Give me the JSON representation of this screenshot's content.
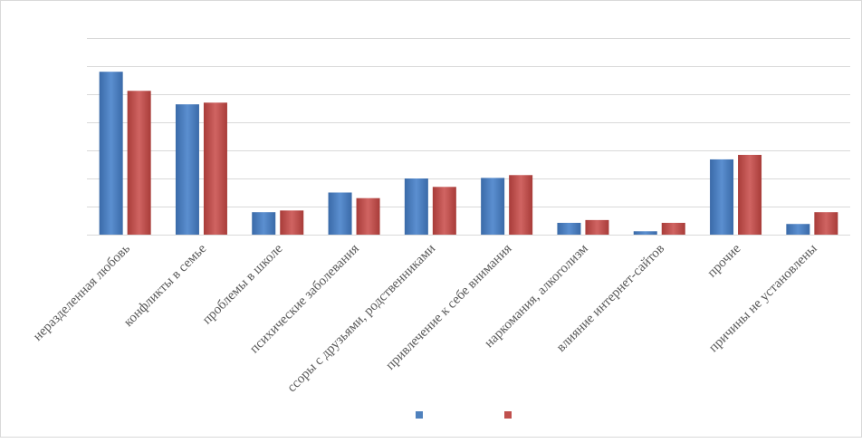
{
  "chart_data": {
    "type": "bar",
    "categories": [
      "неразделенная любовь",
      "конфликты в семье",
      "проблемы в школе",
      "психические заболевания",
      "ссоры с друзьями, родственниками",
      "привлечение к себе внимания",
      "наркомания, алкоголизм",
      "влияние интернет-сайтов",
      "прочие",
      "причины не установлены"
    ],
    "series": [
      {
        "values": [
          29,
          23.2,
          4,
          7.5,
          10,
          10.1,
          2.1,
          0.6,
          13.4,
          1.9
        ]
      },
      {
        "values": [
          25.6,
          23.5,
          4.3,
          6.5,
          8.5,
          10.6,
          2.6,
          2.1,
          14.2,
          4
        ]
      }
    ],
    "ylim": [
      0,
      35
    ],
    "gridlines": [
      0,
      5,
      10,
      15,
      20,
      25,
      30,
      35
    ],
    "grid": true,
    "legend": "bottom",
    "colors": {
      "series1": "#4f81bd",
      "series2": "#c0504d",
      "grid": "#d9d9d9",
      "axis": "#d9d9d9",
      "text": "#595959"
    }
  }
}
